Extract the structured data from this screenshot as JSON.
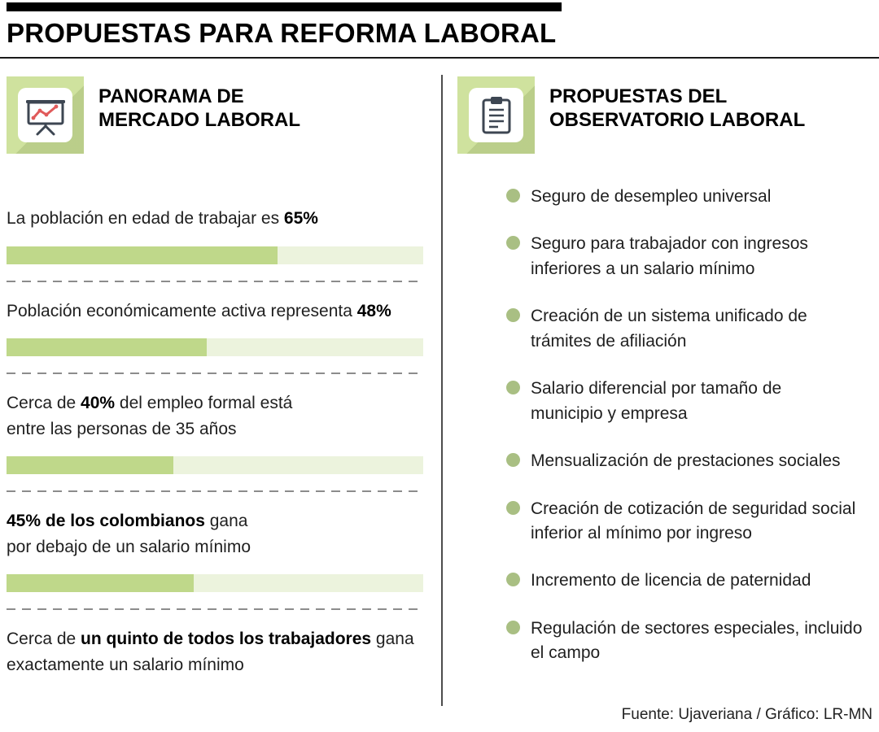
{
  "page": {
    "title": "PROPUESTAS PARA REFORMA LABORAL",
    "footer": "Fuente: Ujaveriana / Gráfico: LR-MN"
  },
  "colors": {
    "bar_fill_green": "#bfd88a",
    "bar_track_green": "#ecf3dd",
    "icon_box_green": "#cfe29e",
    "bullet_green": "#a9bf83",
    "chart_line_red": "#e05a5a",
    "ink": "#000000"
  },
  "icons": {
    "left": "presentation-chart-icon",
    "right": "clipboard-icon",
    "bullet": "circle-bullet-icon"
  },
  "left_panel": {
    "heading": "PANORAMA DE\nMERCADO LABORAL",
    "stats": [
      {
        "pre": "La población en edad de trabajar es ",
        "bold": "65%",
        "post": "",
        "value": 65
      },
      {
        "pre": "Población económicamente activa representa ",
        "bold": "48%",
        "post": "",
        "value": 48
      },
      {
        "pre": "Cerca de ",
        "bold": "40%",
        "post": " del empleo formal está entre las personas de 35 años",
        "value": 40
      },
      {
        "pre": "",
        "bold": "45% de los colombianos",
        "post": " gana por debajo de un salario mínimo",
        "value": 45
      },
      {
        "pre": "Cerca de ",
        "bold": "un quinto de todos los trabajadores",
        "post": " gana exactamente un salario mínimo",
        "value": null
      }
    ]
  },
  "right_panel": {
    "heading": "PROPUESTAS DEL\nOBSERVATORIO LABORAL",
    "items": [
      "Seguro de desempleo universal",
      "Seguro para trabajador con ingresos inferiores a un salario mínimo",
      "Creación de un sistema unificado de trámites de afiliación",
      "Salario diferencial por tamaño de municipio y empresa",
      "Mensualización de prestaciones sociales",
      "Creación de cotización de seguridad social inferior al mínimo por ingreso",
      "Incremento de licencia de paternidad",
      "Regulación de sectores especiales, incluido el campo"
    ]
  },
  "chart_data": {
    "type": "bar",
    "orientation": "horizontal",
    "title": "PANORAMA DE MERCADO LABORAL",
    "categories": [
      "La población en edad de trabajar es 65%",
      "Población económicamente activa representa 48%",
      "Cerca de 40% del empleo formal está entre las personas de 35 años",
      "45% de los colombianos gana por debajo de un salario mínimo",
      "Cerca de un quinto de todos los trabajadores gana exactamente un salario mínimo"
    ],
    "values": [
      65,
      48,
      40,
      45,
      null
    ],
    "xlim": [
      0,
      100
    ],
    "grid": false,
    "legend": "none",
    "bar_color": "#bfd88a",
    "track_color": "#ecf3dd",
    "layout_note": "fifth statement is text-only, no bar shown"
  }
}
